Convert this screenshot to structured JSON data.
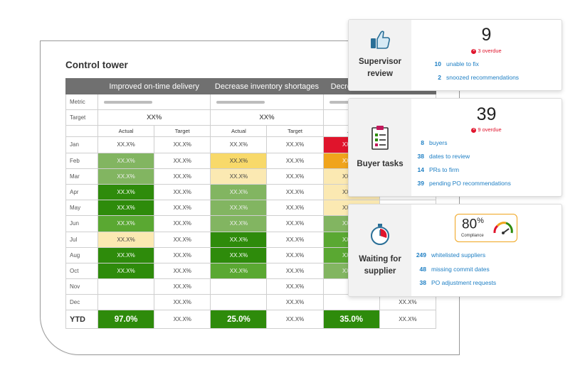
{
  "control_tower": {
    "title": "Control tower",
    "headers": [
      "Improved on-time delivery",
      "Decrease inventory shortages",
      "Decre"
    ],
    "metric_label": "Metric",
    "target_label": "Target",
    "target_values": [
      "XX%",
      "XX%"
    ],
    "sub_headers": [
      "Actual",
      "Target",
      "Actual",
      "Target",
      "Act"
    ],
    "placeholder": "XX.X%",
    "rows": [
      {
        "month": "Jan"
      },
      {
        "month": "Feb"
      },
      {
        "month": "Mar"
      },
      {
        "month": "Apr"
      },
      {
        "month": "May"
      },
      {
        "month": "Jun"
      },
      {
        "month": "Jul"
      },
      {
        "month": "Aug"
      },
      {
        "month": "Oct"
      },
      {
        "month": "Nov"
      },
      {
        "month": "Dec"
      }
    ],
    "ytd": {
      "label": "YTD",
      "values": [
        "97.0%",
        "XX.X%",
        "25.0%",
        "XX.X%",
        "35.0%",
        "XX.X%"
      ]
    }
  },
  "supervisor": {
    "label_line1": "Supervisor",
    "label_line2": "review",
    "count": "9",
    "overdue": "3 overdue",
    "stats": [
      {
        "num": "10",
        "text": "unable to fix"
      },
      {
        "num": "2",
        "text": "snoozed recommendations"
      }
    ]
  },
  "buyer": {
    "label": "Buyer tasks",
    "count": "39",
    "overdue": "9 overdue",
    "stats": [
      {
        "num": "8",
        "text": "buyers"
      },
      {
        "num": "38",
        "text": "dates to review"
      },
      {
        "num": "14",
        "text": "PRs to firm"
      },
      {
        "num": "39",
        "text": "pending PO recommendations"
      }
    ]
  },
  "supplier": {
    "label_line1": "Waiting for",
    "label_line2": "supplier",
    "compliance_value": "80",
    "compliance_unit": "%",
    "compliance_label": "Compliance",
    "compliance_fraction": 0.8,
    "stats": [
      {
        "num": "249",
        "text": "whitelisted suppliers"
      },
      {
        "num": "48",
        "text": "missing commit dates"
      },
      {
        "num": "38",
        "text": "PO adjustment requests"
      }
    ]
  },
  "colors": {
    "dark_green": "#2e8b0b",
    "mid_green": "#5aa832",
    "light_green": "#82b561",
    "yellow": "#f8d96a",
    "pale_yellow": "#fbe9b2",
    "red": "#e0142c",
    "orange": "#f0a41c",
    "link_blue": "#1e7fc4"
  },
  "icons": [
    "thumbs-up-icon",
    "checklist-icon",
    "stopwatch-icon",
    "gauge-icon",
    "overdue-icon"
  ]
}
